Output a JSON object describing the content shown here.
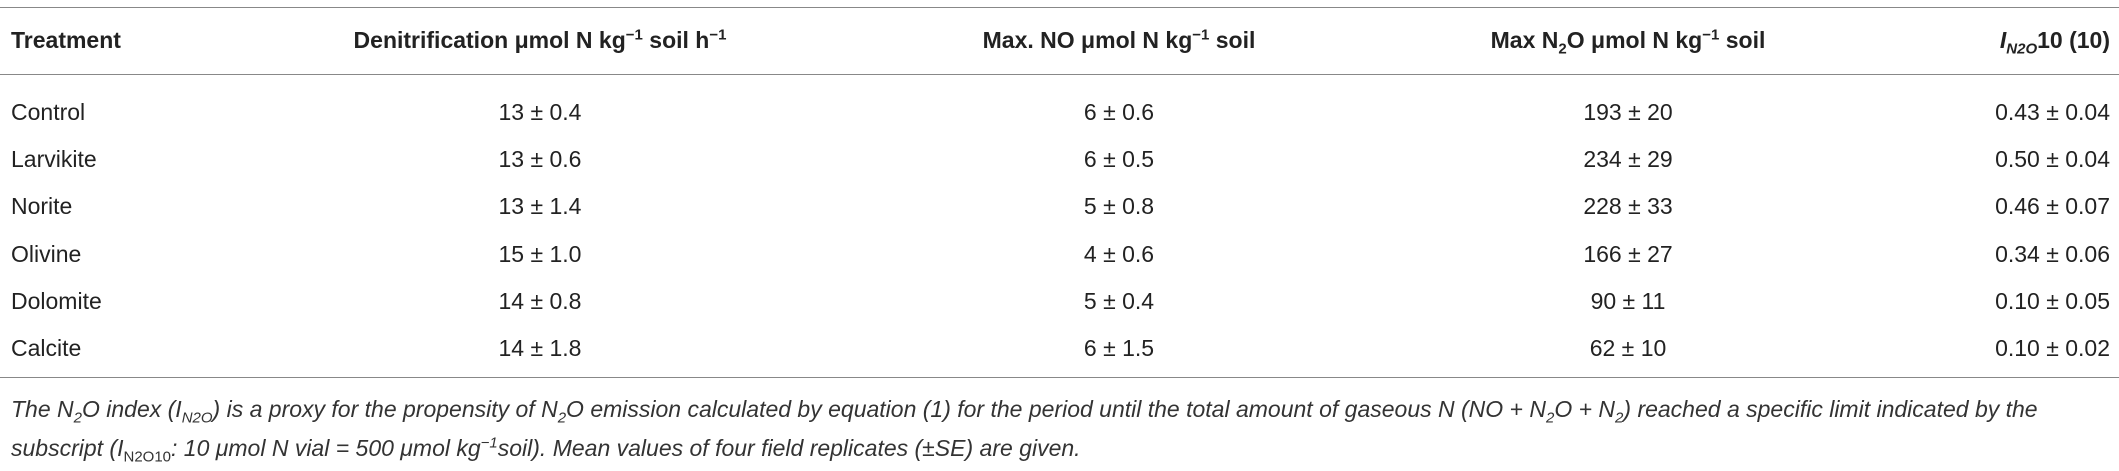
{
  "table": {
    "header": [
      [
        "Treatment"
      ],
      [
        "Denitrification μmol N kg",
        "−1",
        " soil h",
        "−1"
      ],
      [
        "Max. NO μmol N kg",
        "−1",
        " soil"
      ],
      [
        "Max N",
        "2",
        "O μmol N kg",
        "−1",
        " soil"
      ],
      [
        "I",
        "N2O",
        "10 (10)"
      ]
    ],
    "rows": [
      [
        "Control",
        "13 ± 0.4",
        "6 ± 0.6",
        "193 ± 20",
        "0.43 ± 0.04"
      ],
      [
        "Larvikite",
        "13 ± 0.6",
        "6 ± 0.5",
        "234 ± 29",
        "0.50 ± 0.04"
      ],
      [
        "Norite",
        "13 ± 1.4",
        "5 ± 0.8",
        "228 ± 33",
        "0.46 ± 0.07"
      ],
      [
        "Olivine",
        "15 ± 1.0",
        "4 ± 0.6",
        "166 ± 27",
        "0.34 ± 0.06"
      ],
      [
        "Dolomite",
        "14 ± 0.8",
        "5 ± 0.4",
        "90 ± 11",
        "0.10 ± 0.05"
      ],
      [
        "Calcite",
        "14 ± 1.8",
        "6 ± 1.5",
        "62 ± 10",
        "0.10 ± 0.02"
      ]
    ],
    "footnote": [
      "The N",
      "2",
      "O index (I",
      "N2O",
      ") is a proxy for the propensity of N",
      "2",
      "O emission calculated by equation (1) for the period until the total amount of gaseous N (NO + N",
      "2",
      "O + N",
      "2",
      ") reached a specific limit indicated by the subscript (I",
      "N2O10",
      ": 10 μmol N vial = 500 μmol kg",
      "−1",
      "soil). Mean values of four field replicates (±SE) are given."
    ]
  }
}
